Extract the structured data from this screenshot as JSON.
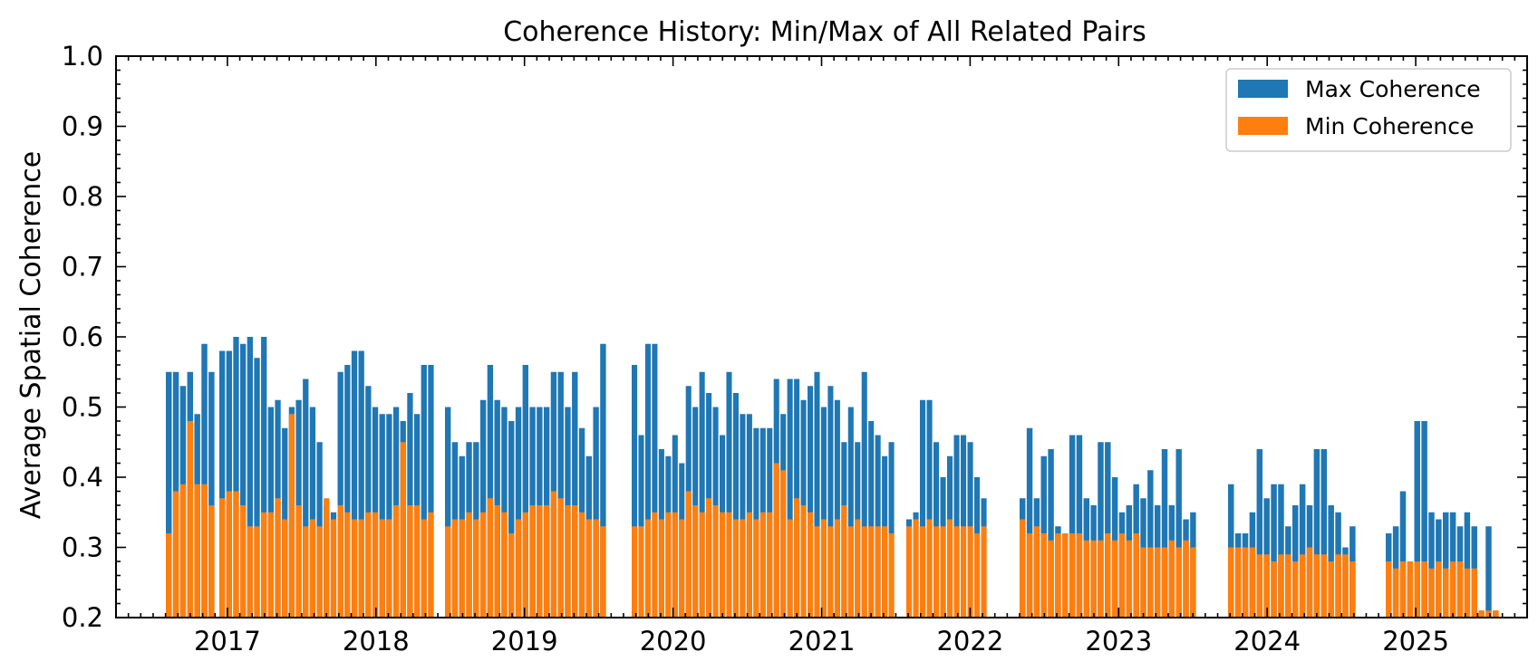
{
  "chart_data": {
    "type": "bar",
    "title": "Coherence History: Min/Max of All Related Pairs",
    "xlabel": "",
    "ylabel": "Average Spatial Coherence",
    "ylim": [
      0.2,
      1.0
    ],
    "xlim": [
      2016.25,
      2025.75
    ],
    "yticks": [
      "0.2",
      "0.3",
      "0.4",
      "0.5",
      "0.6",
      "0.7",
      "0.8",
      "0.9",
      "1.0"
    ],
    "xticks": [
      "2017",
      "2018",
      "2019",
      "2020",
      "2021",
      "2022",
      "2023",
      "2024",
      "2025"
    ],
    "grid": false,
    "legend_position": "top-right",
    "colors": {
      "max": "#1f77b4",
      "min": "#ff7f0e"
    },
    "series": [
      {
        "name": "Max Coherence",
        "values": [
          0.55,
          0.55,
          0.53,
          0.55,
          0.49,
          0.59,
          0.55,
          0.58,
          0.58,
          0.6,
          0.59,
          0.6,
          0.57,
          0.6,
          0.5,
          0.51,
          0.47,
          0.5,
          0.51,
          0.54,
          0.5,
          0.45,
          0.36,
          0.35,
          0.55,
          0.56,
          0.58,
          0.58,
          0.53,
          0.5,
          0.49,
          0.49,
          0.5,
          0.48,
          0.52,
          0.49,
          0.56,
          0.56,
          0.5,
          0.45,
          0.43,
          0.45,
          0.45,
          0.51,
          0.56,
          0.51,
          0.5,
          0.48,
          0.5,
          0.56,
          0.5,
          0.5,
          0.5,
          0.55,
          0.55,
          0.5,
          0.55,
          0.47,
          0.43,
          0.5,
          0.59,
          0.56,
          0.46,
          0.59,
          0.59,
          0.44,
          0.43,
          0.46,
          0.42,
          0.53,
          0.5,
          0.55,
          0.52,
          0.5,
          0.46,
          0.55,
          0.52,
          0.49,
          0.49,
          0.47,
          0.47,
          0.47,
          0.54,
          0.49,
          0.54,
          0.54,
          0.51,
          0.53,
          0.55,
          0.5,
          0.53,
          0.51,
          0.45,
          0.5,
          0.45,
          0.55,
          0.48,
          0.46,
          0.43,
          0.45,
          0.34,
          0.35,
          0.51,
          0.51,
          0.45,
          0.4,
          0.43,
          0.46,
          0.46,
          0.45,
          0.4,
          0.37,
          0.37,
          0.47,
          0.37,
          0.43,
          0.44,
          0.33,
          0.32,
          0.46,
          0.46,
          0.37,
          0.36,
          0.45,
          0.45,
          0.4,
          0.35,
          0.36,
          0.39,
          0.37,
          0.41,
          0.36,
          0.44,
          0.36,
          0.44,
          0.34,
          0.35,
          0.39,
          0.32,
          0.32,
          0.35,
          0.44,
          0.37,
          0.39,
          0.39,
          0.33,
          0.36,
          0.39,
          0.36,
          0.44,
          0.44,
          0.36,
          0.35,
          0.3,
          0.33,
          0.32,
          0.33,
          0.38,
          0.26,
          0.48,
          0.48,
          0.35,
          0.34,
          0.35,
          0.35,
          0.33,
          0.35,
          0.33,
          0.21,
          0.33,
          0.21
        ]
      },
      {
        "name": "Min Coherence",
        "values": [
          0.32,
          0.38,
          0.39,
          0.48,
          0.39,
          0.39,
          0.36,
          0.37,
          0.38,
          0.38,
          0.36,
          0.33,
          0.33,
          0.35,
          0.35,
          0.37,
          0.34,
          0.49,
          0.36,
          0.33,
          0.34,
          0.33,
          0.37,
          0.34,
          0.36,
          0.35,
          0.34,
          0.34,
          0.35,
          0.35,
          0.34,
          0.34,
          0.36,
          0.45,
          0.36,
          0.36,
          0.34,
          0.35,
          0.33,
          0.34,
          0.34,
          0.35,
          0.34,
          0.35,
          0.37,
          0.36,
          0.35,
          0.32,
          0.34,
          0.35,
          0.36,
          0.36,
          0.36,
          0.38,
          0.37,
          0.36,
          0.36,
          0.35,
          0.34,
          0.34,
          0.33,
          0.33,
          0.33,
          0.34,
          0.35,
          0.34,
          0.35,
          0.35,
          0.34,
          0.38,
          0.36,
          0.35,
          0.37,
          0.36,
          0.35,
          0.35,
          0.34,
          0.34,
          0.35,
          0.34,
          0.35,
          0.35,
          0.42,
          0.41,
          0.34,
          0.37,
          0.36,
          0.35,
          0.33,
          0.34,
          0.33,
          0.34,
          0.36,
          0.33,
          0.34,
          0.33,
          0.33,
          0.33,
          0.33,
          0.32,
          0.33,
          0.34,
          0.33,
          0.34,
          0.33,
          0.33,
          0.34,
          0.33,
          0.33,
          0.33,
          0.32,
          0.33,
          0.34,
          0.32,
          0.33,
          0.32,
          0.31,
          0.32,
          0.32,
          0.32,
          0.32,
          0.31,
          0.31,
          0.31,
          0.32,
          0.31,
          0.32,
          0.31,
          0.32,
          0.3,
          0.3,
          0.3,
          0.3,
          0.31,
          0.3,
          0.31,
          0.3,
          0.3,
          0.3,
          0.3,
          0.3,
          0.29,
          0.29,
          0.28,
          0.29,
          0.29,
          0.28,
          0.29,
          0.3,
          0.29,
          0.29,
          0.28,
          0.29,
          0.29,
          0.28,
          0.28,
          0.27,
          0.28,
          0.28,
          0.28,
          0.28,
          0.27,
          0.28,
          0.27,
          0.28,
          0.28,
          0.27,
          0.27,
          0.21,
          0.21,
          0.21
        ]
      }
    ]
  }
}
